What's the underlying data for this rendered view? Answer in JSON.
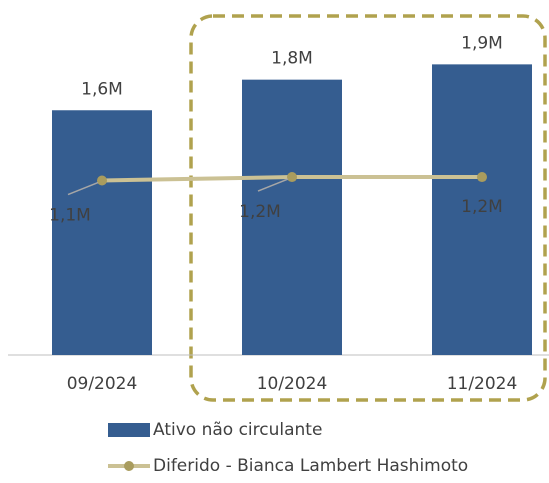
{
  "chart_data": {
    "type": "bar",
    "categories": [
      "09/2024",
      "10/2024",
      "11/2024"
    ],
    "series": [
      {
        "name": "Ativo não circulante",
        "type": "bar",
        "color": "#355d90",
        "values": [
          1.6,
          1.8,
          1.9
        ],
        "value_labels": [
          "1,6M",
          "1,8M",
          "1,9M"
        ]
      },
      {
        "name": "Diferido - Bianca Lambert Hashimoto",
        "type": "line",
        "axis": "y2",
        "color": "#cbc194",
        "marker_color": "#a99c5e",
        "values": [
          1.1,
          1.2,
          1.2
        ],
        "value_labels": [
          "1,1M",
          "1,2M",
          "1,2M"
        ]
      }
    ],
    "ylim": [
      0,
      2.19
    ],
    "y2lim": [
      -3.9,
      5.7
    ],
    "grid": false
  }
}
